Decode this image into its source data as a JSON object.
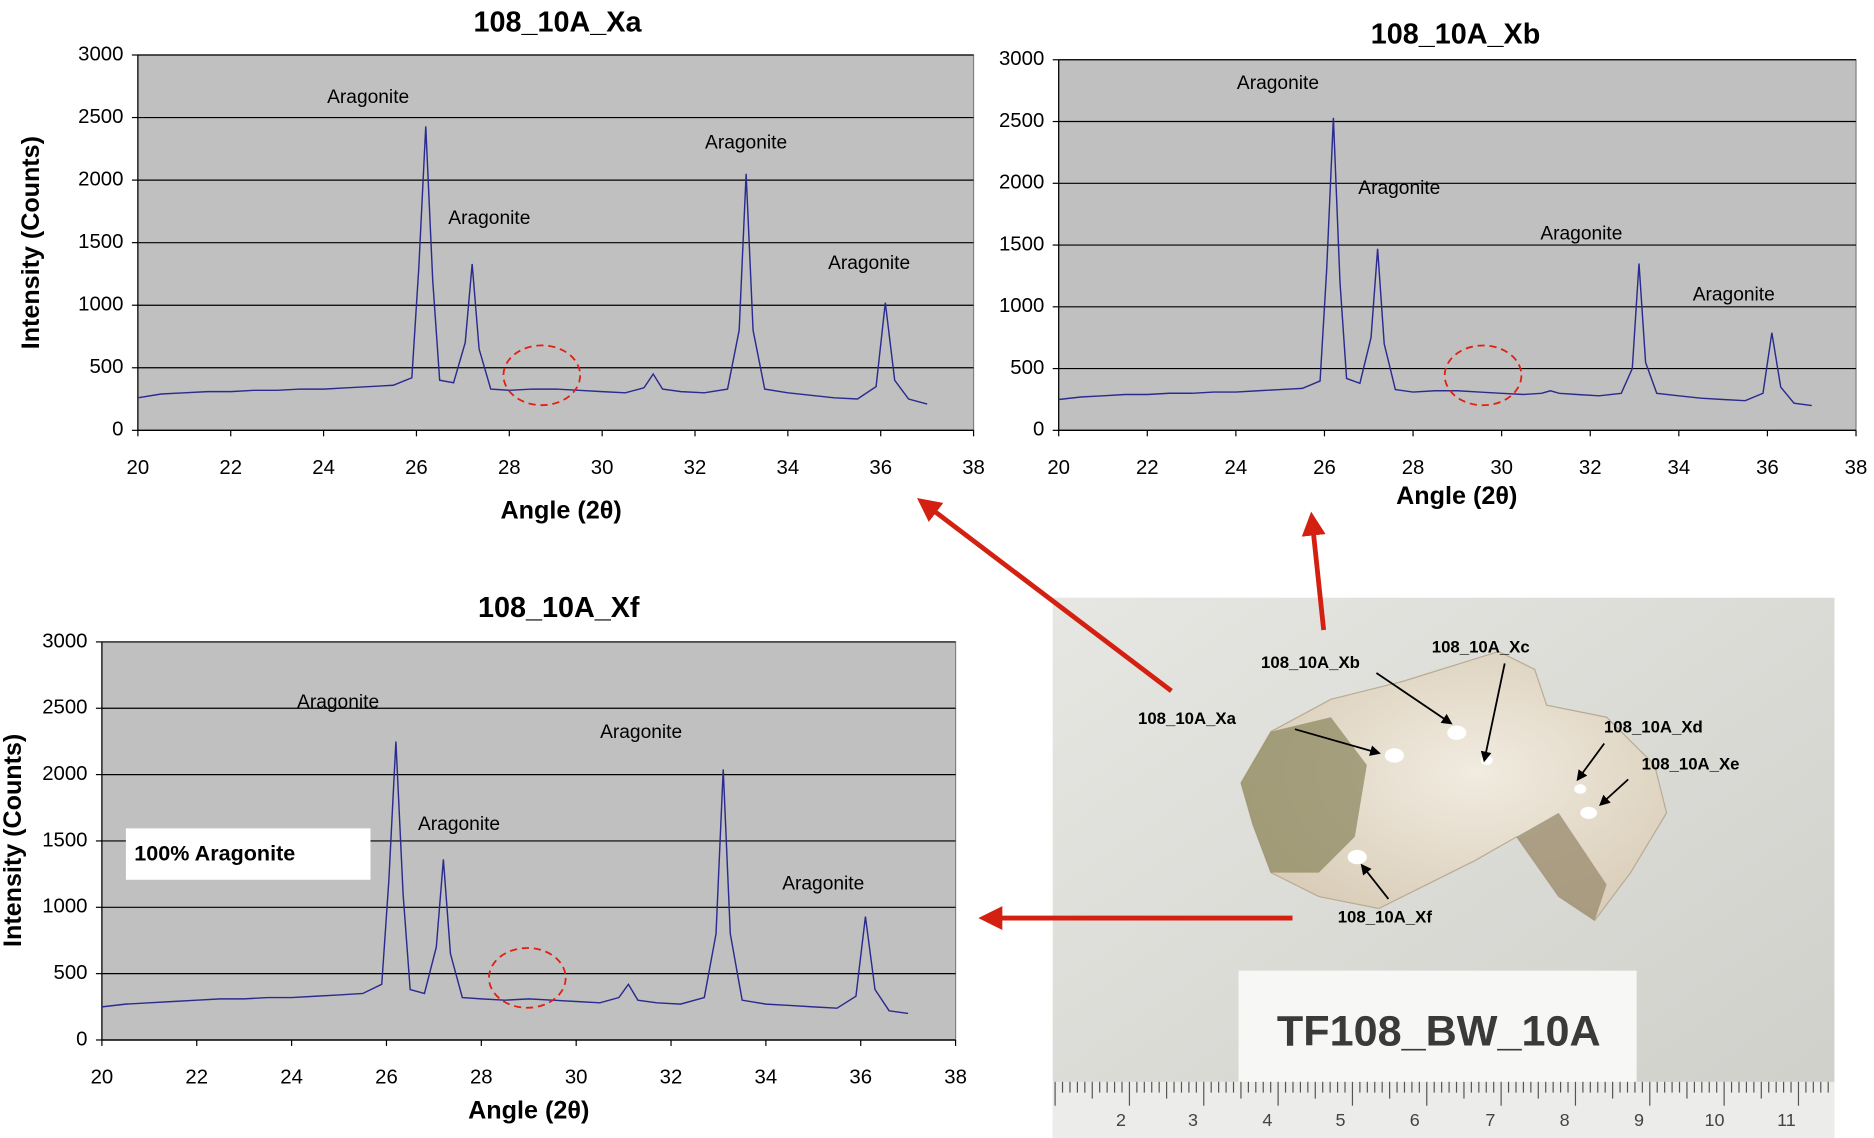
{
  "chart_data": [
    {
      "type": "line",
      "title": "108_10A_Xa",
      "x_label": "Angle (2θ)",
      "y_label": "Intensity (Counts)",
      "x": [
        20,
        20.5,
        21,
        21.5,
        22,
        22.5,
        23,
        23.5,
        24,
        24.5,
        25,
        25.5,
        25.9,
        26.05,
        26.2,
        26.35,
        26.5,
        26.8,
        27.05,
        27.2,
        27.35,
        27.6,
        28,
        28.5,
        29,
        29.5,
        30,
        30.5,
        30.9,
        31.1,
        31.3,
        31.7,
        32.2,
        32.7,
        32.95,
        33.1,
        33.25,
        33.5,
        34,
        34.5,
        35,
        35.5,
        35.9,
        36.1,
        36.3,
        36.6,
        37
      ],
      "values": [
        260,
        290,
        300,
        310,
        310,
        320,
        320,
        330,
        330,
        340,
        350,
        360,
        420,
        1300,
        2430,
        1200,
        400,
        380,
        700,
        1330,
        650,
        330,
        320,
        330,
        330,
        320,
        310,
        300,
        340,
        450,
        330,
        310,
        300,
        330,
        800,
        2050,
        800,
        330,
        300,
        280,
        260,
        250,
        350,
        1020,
        400,
        250,
        210
      ],
      "color": "#2b2b8f",
      "xlim": [
        20,
        38
      ],
      "ylim": [
        0,
        3000
      ],
      "xticks": [
        20,
        22,
        24,
        26,
        28,
        30,
        32,
        34,
        36,
        38
      ],
      "yticks": [
        0,
        500,
        1000,
        1500,
        2000,
        2500,
        3000
      ],
      "grid": true,
      "annotations": [
        "Aragonite",
        "Aragonite",
        "Aragonite",
        "Aragonite"
      ]
    },
    {
      "type": "line",
      "title": "108_10A_Xb",
      "x_label": "Angle (2θ)",
      "x": [
        20,
        20.5,
        21,
        21.5,
        22,
        22.5,
        23,
        23.5,
        24,
        24.5,
        25,
        25.5,
        25.9,
        26.05,
        26.2,
        26.35,
        26.5,
        26.8,
        27.05,
        27.2,
        27.35,
        27.6,
        28,
        28.5,
        29,
        29.5,
        30,
        30.5,
        30.9,
        31.1,
        31.3,
        31.7,
        32.2,
        32.7,
        32.95,
        33.1,
        33.25,
        33.5,
        34,
        34.5,
        35,
        35.5,
        35.9,
        36.1,
        36.3,
        36.6,
        37
      ],
      "values": [
        250,
        270,
        280,
        290,
        290,
        300,
        300,
        310,
        310,
        320,
        330,
        340,
        400,
        1300,
        2530,
        1200,
        420,
        380,
        750,
        1470,
        700,
        330,
        310,
        320,
        320,
        310,
        300,
        290,
        300,
        320,
        300,
        290,
        280,
        300,
        500,
        1350,
        550,
        300,
        280,
        260,
        250,
        240,
        300,
        790,
        350,
        220,
        200
      ],
      "color": "#2b2b8f",
      "xlim": [
        20,
        38
      ],
      "ylim": [
        0,
        3000
      ],
      "xticks": [
        20,
        22,
        24,
        26,
        28,
        30,
        32,
        34,
        36,
        38
      ],
      "yticks": [
        0,
        500,
        1000,
        1500,
        2000,
        2500,
        3000
      ],
      "grid": true,
      "annotations": [
        "Aragonite",
        "Aragonite",
        "Aragonite",
        "Aragonite"
      ]
    },
    {
      "type": "line",
      "title": "108_10A_Xf",
      "x_label": "Angle (2θ)",
      "y_label": "Intensity (Counts)",
      "x": [
        20,
        20.5,
        21,
        21.5,
        22,
        22.5,
        23,
        23.5,
        24,
        24.5,
        25,
        25.5,
        25.9,
        26.05,
        26.2,
        26.35,
        26.5,
        26.8,
        27.05,
        27.2,
        27.35,
        27.6,
        28,
        28.5,
        29,
        29.5,
        30,
        30.5,
        30.9,
        31.1,
        31.3,
        31.7,
        32.2,
        32.7,
        32.95,
        33.1,
        33.25,
        33.5,
        34,
        34.5,
        35,
        35.5,
        35.9,
        36.1,
        36.3,
        36.6,
        37
      ],
      "values": [
        250,
        270,
        280,
        290,
        300,
        310,
        310,
        320,
        320,
        330,
        340,
        350,
        420,
        1200,
        2250,
        1100,
        380,
        350,
        700,
        1360,
        650,
        320,
        310,
        300,
        310,
        300,
        290,
        280,
        320,
        420,
        300,
        280,
        270,
        320,
        800,
        2040,
        800,
        300,
        270,
        260,
        250,
        240,
        330,
        930,
        380,
        220,
        200
      ],
      "color": "#2b2b8f",
      "xlim": [
        20,
        38
      ],
      "ylim": [
        0,
        3000
      ],
      "xticks": [
        20,
        22,
        24,
        26,
        28,
        30,
        32,
        34,
        36,
        38
      ],
      "yticks": [
        0,
        500,
        1000,
        1500,
        2000,
        2500,
        3000
      ],
      "grid": true,
      "annotations": [
        "Aragonite",
        "Aragonite",
        "Aragonite",
        "Aragonite"
      ],
      "annotation_box": "100% Aragonite"
    }
  ],
  "photo": {
    "points": [
      "108_10A_Xa",
      "108_10A_Xb",
      "108_10A_Xc",
      "108_10A_Xd",
      "108_10A_Xe",
      "108_10A_Xf"
    ],
    "sample_label": "TF108_BW_10A",
    "ruler_labels": [
      "2",
      "3",
      "4",
      "5",
      "6",
      "7",
      "8",
      "9",
      "10",
      "11"
    ]
  }
}
